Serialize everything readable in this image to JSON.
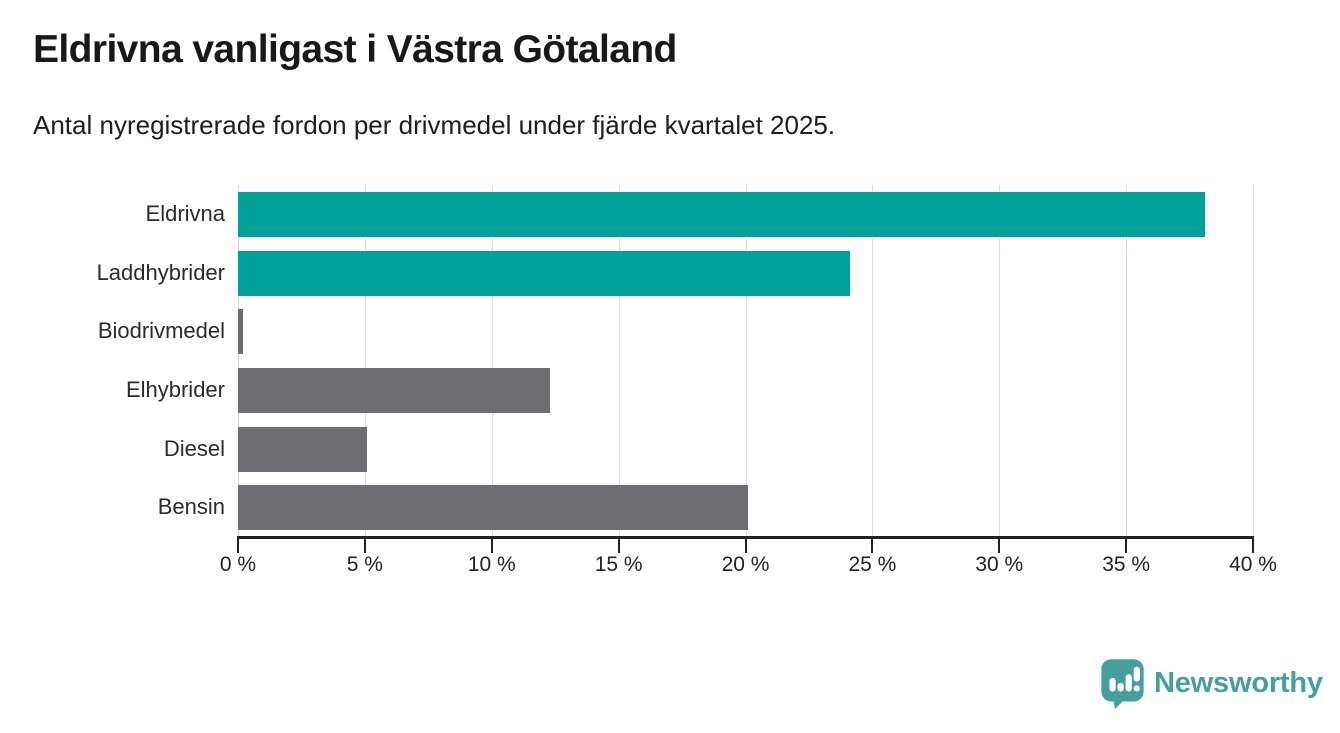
{
  "header": {
    "title": "Eldrivna vanligast i Västra Götaland",
    "subtitle": "Antal nyregistrerade fordon per drivmedel under fjärde kvartalet 2025."
  },
  "chart_data": {
    "type": "bar",
    "orientation": "horizontal",
    "title": "Eldrivna vanligast i Västra Götaland",
    "subtitle": "Antal nyregistrerade fordon per drivmedel under fjärde kvartalet 2025.",
    "categories": [
      "Eldrivna",
      "Laddhybrider",
      "Biodrivmedel",
      "Elhybrider",
      "Diesel",
      "Bensin"
    ],
    "values": [
      38.1,
      24.1,
      0.2,
      12.3,
      5.1,
      20.1
    ],
    "unit": "%",
    "bar_colors": [
      "#00a19a",
      "#00a19a",
      "#6d6d72",
      "#6d6d72",
      "#6d6d72",
      "#6d6d72"
    ],
    "xlabel": "",
    "ylabel": "",
    "xlim": [
      0,
      40
    ],
    "x_tick_step": 5,
    "x_tick_labels": [
      "0 %",
      "5 %",
      "10 %",
      "15 %",
      "20 %",
      "25 %",
      "30 %",
      "35 %",
      "40 %"
    ],
    "grid": true,
    "legend": false
  },
  "footer": {
    "brand": "Newsworthy"
  },
  "colors": {
    "accent_teal": "#00a19a",
    "neutral_gray": "#6d6d72",
    "gridline": "#dcdcdc",
    "axis": "#222222",
    "brand_teal": "#43a09c",
    "background": "#ffffff",
    "text": "#1d1d1d"
  }
}
